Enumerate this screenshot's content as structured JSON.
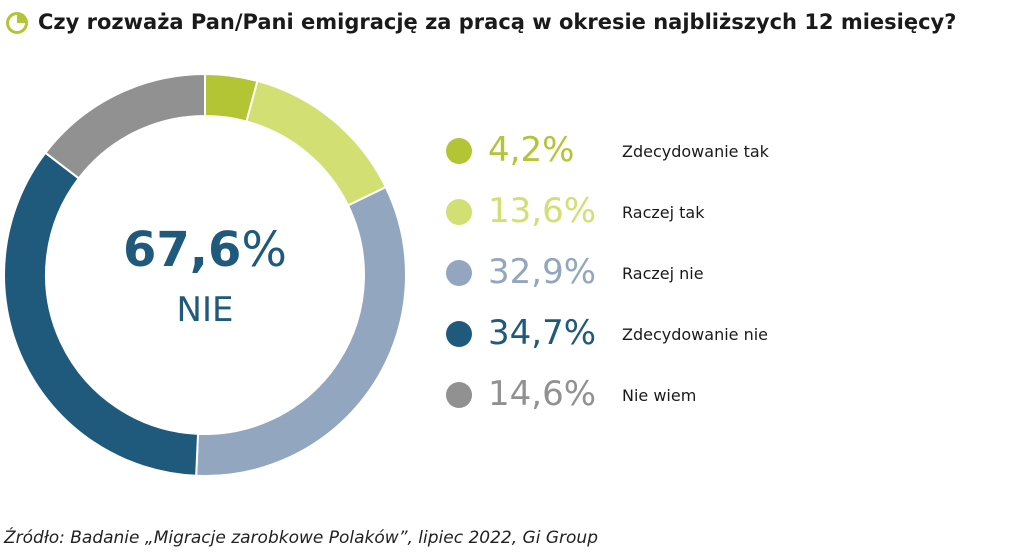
{
  "header": {
    "title": "Czy rozważa Pan/Pani emigrację za pracą w okresie najbliższych 12 miesięcy?",
    "icon": "pie-chart-icon"
  },
  "colors": {
    "dark_green": "#b3c535",
    "light_green": "#d2df73",
    "gray_blue": "#93a6bf",
    "dark_blue": "#1f5a7d",
    "gray": "#919191"
  },
  "chart_data": {
    "type": "pie",
    "categories": [
      "Zdecydowanie tak",
      "Raczej tak",
      "Raczej nie",
      "Zdecydowanie nie",
      "Nie wiem"
    ],
    "values": [
      4.2,
      13.6,
      32.9,
      34.7,
      14.6
    ],
    "value_labels": [
      "4,2%",
      "13,6%",
      "32,9%",
      "34,7%",
      "14,6%"
    ],
    "colors": [
      "#b3c535",
      "#d2df73",
      "#93a6bf",
      "#1f5a7d",
      "#919191"
    ],
    "center": {
      "value": "67,6",
      "unit": "%",
      "label": "NIE"
    },
    "legend_position": "right"
  },
  "source": "Źródło: Badanie „Migracje zarobkowe Polaków”, lipiec 2022, Gi Group"
}
